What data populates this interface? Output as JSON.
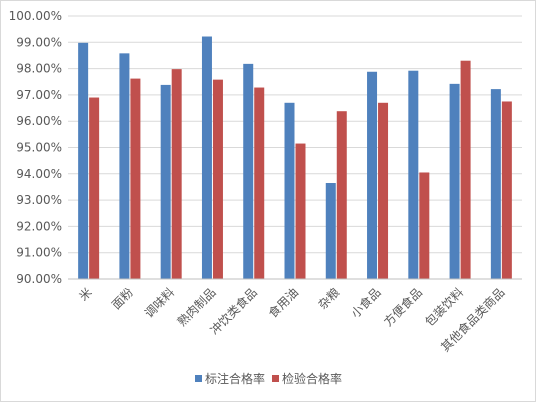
{
  "chart_data": {
    "type": "bar",
    "categories": [
      "米",
      "面粉",
      "调味料",
      "熟肉制品",
      "冲饮类食品",
      "食用油",
      "杂粮",
      "小食品",
      "方便食品",
      "包装饮料",
      "其他食品类商品"
    ],
    "series": [
      {
        "name": "标注合格率",
        "color": "#4f81bd",
        "values": [
          98.98,
          98.58,
          97.38,
          99.22,
          98.18,
          96.7,
          93.65,
          97.88,
          97.92,
          97.42,
          97.22
        ]
      },
      {
        "name": "检验合格率",
        "color": "#c0504d",
        "values": [
          96.9,
          97.62,
          97.98,
          97.58,
          97.28,
          95.15,
          96.38,
          96.7,
          94.05,
          98.3,
          96.75
        ]
      }
    ],
    "y_ticks": [
      "90.00%",
      "91.00%",
      "92.00%",
      "93.00%",
      "94.00%",
      "95.00%",
      "96.00%",
      "97.00%",
      "98.00%",
      "99.00%",
      "100.00%"
    ],
    "ylim": [
      90,
      100
    ],
    "grid": true,
    "legend_position": "bottom",
    "gridline_color": "#d9d9d9",
    "axis_color": "#bfbfbf"
  }
}
